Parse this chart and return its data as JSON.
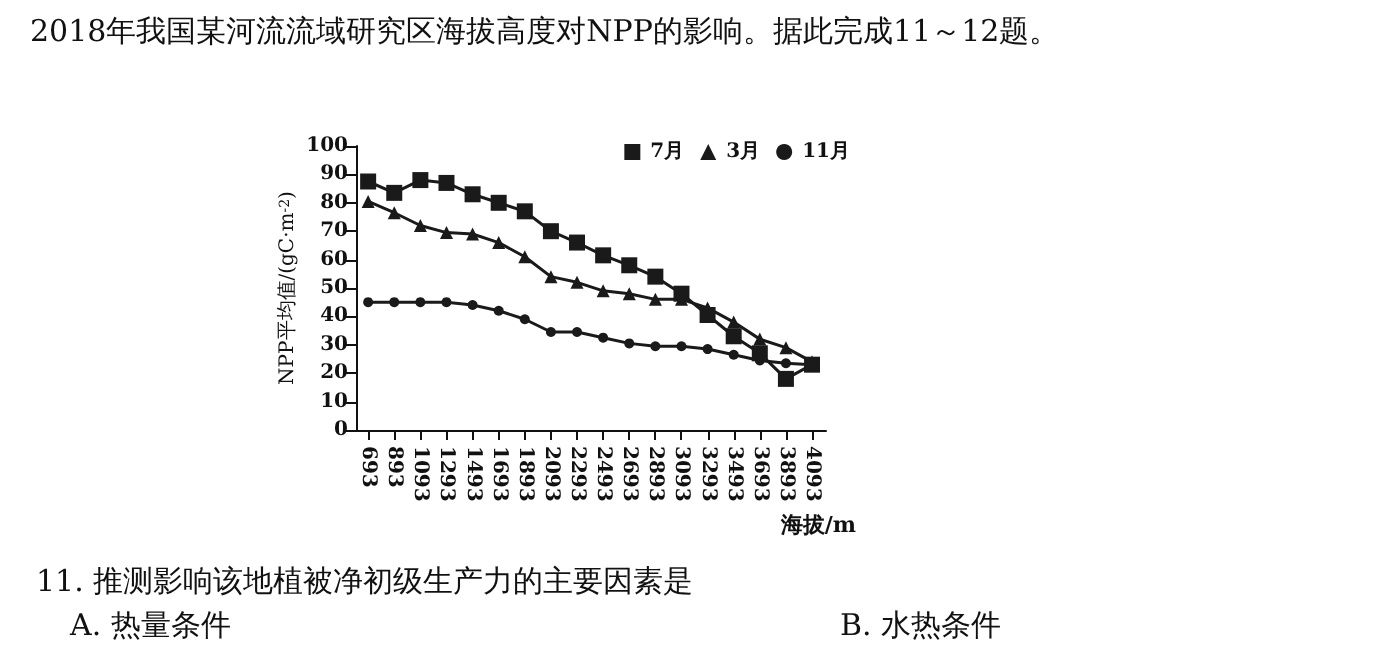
{
  "chart_data": {
    "type": "line",
    "xlabel": "海拔/m",
    "ylabel": "NPP平均值/(gC·m$^{-2}$)",
    "x": [
      693,
      893,
      1093,
      1293,
      1493,
      1693,
      1893,
      2093,
      2293,
      2493,
      2693,
      2893,
      3093,
      3293,
      3493,
      3693,
      3893,
      4093
    ],
    "series": [
      {
        "name": "7月",
        "color": "#1a1a1a",
        "marker": "square",
        "values": [
          87.5,
          83.5,
          88,
          87,
          83,
          80,
          77,
          70,
          66,
          61.5,
          58,
          54,
          48,
          40.5,
          33,
          27,
          18,
          23
        ]
      },
      {
        "name": "3月",
        "color": "#1a1a1a",
        "marker": "triangle",
        "values": [
          80.5,
          76.5,
          72,
          69.5,
          69,
          66,
          61,
          54,
          52,
          49,
          48,
          46,
          46,
          43,
          38,
          32,
          29,
          24
        ]
      },
      {
        "name": "11月",
        "color": "#1a1a1a",
        "marker": "circle",
        "values": [
          45,
          45,
          45,
          45,
          44,
          42,
          39,
          34.5,
          34.5,
          32.5,
          30.5,
          29.5,
          29.5,
          28.5,
          26.5,
          24.5,
          23.5,
          23
        ]
      }
    ],
    "xlim": [
      600,
      4200
    ],
    "xticks": [
      693,
      893,
      1093,
      1293,
      1493,
      1693,
      1893,
      2093,
      2293,
      2493,
      2693,
      2893,
      3093,
      3293,
      3493,
      3693,
      3893,
      4093
    ],
    "ylim": [
      0,
      100
    ],
    "yticks": [
      0,
      10,
      20,
      30,
      40,
      50,
      60,
      70,
      80,
      90,
      100
    ],
    "grid": false,
    "legend": "top right",
    "line_style": "solid",
    "annotations": [
      "2018年我国某河流流域研究区海拔高度对NPP的影响。据此完成11～12题。",
      "11. 推测影响该地植被净初级生产力的主要因素是",
      "A. 热量条件",
      "B. 水热条件"
    ]
  }
}
